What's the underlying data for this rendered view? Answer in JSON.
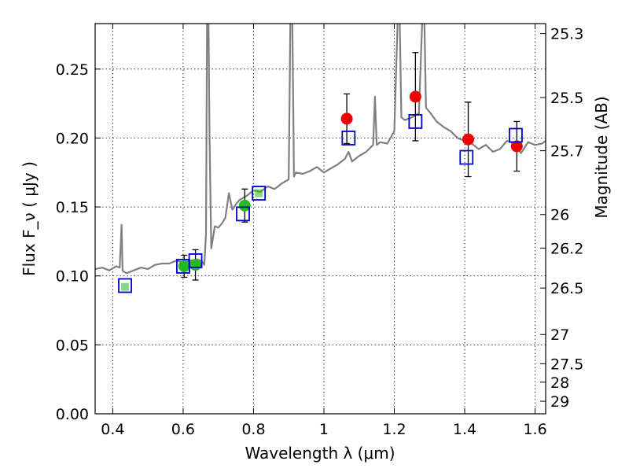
{
  "chart_data": {
    "type": "scatter",
    "xlabel": "Wavelength  λ (μm)",
    "ylabel": "Flux  F_ν  ( μJy )",
    "ylabel_right": "Magnitude (AB)",
    "xlim": [
      0.35,
      1.63
    ],
    "ylim": [
      0.0,
      0.283
    ],
    "grid": true,
    "x_ticks": [
      0.4,
      0.6,
      0.8,
      1.0,
      1.2,
      1.4,
      1.6
    ],
    "x_tick_labels": [
      "0.4",
      "0.6",
      "0.8",
      "1",
      "1.2",
      "1.4",
      "1.6"
    ],
    "y_ticks": [
      0.0,
      0.05,
      0.1,
      0.15,
      0.2,
      0.25
    ],
    "y_tick_labels": [
      "0.00",
      "0.05",
      "0.10",
      "0.15",
      "0.20",
      "0.25"
    ],
    "right_ticks": [
      {
        "label": "25.3",
        "flux": 0.2758
      },
      {
        "label": "25.5",
        "flux": 0.2294
      },
      {
        "label": "25.7",
        "flux": 0.1908
      },
      {
        "label": "26",
        "flux": 0.1445
      },
      {
        "label": "26.2",
        "flux": 0.1202
      },
      {
        "label": "26.5",
        "flux": 0.0912
      },
      {
        "label": "27",
        "flux": 0.0575
      },
      {
        "label": "27.5",
        "flux": 0.0363
      },
      {
        "label": "28",
        "flux": 0.0229
      },
      {
        "label": "29",
        "flux": 0.0091
      }
    ],
    "series": [
      {
        "kind": "spectrum",
        "color": "#808080",
        "x": [
          0.35,
          0.37,
          0.39,
          0.41,
          0.42,
          0.425,
          0.428,
          0.432,
          0.44,
          0.46,
          0.48,
          0.5,
          0.52,
          0.54,
          0.56,
          0.58,
          0.6,
          0.62,
          0.64,
          0.65,
          0.655,
          0.66,
          0.665,
          0.668,
          0.672,
          0.675,
          0.68,
          0.69,
          0.7,
          0.71,
          0.72,
          0.73,
          0.74,
          0.75,
          0.76,
          0.78,
          0.8,
          0.82,
          0.84,
          0.86,
          0.88,
          0.9,
          0.905,
          0.91,
          0.915,
          0.92,
          0.94,
          0.96,
          0.98,
          1.0,
          1.02,
          1.04,
          1.06,
          1.07,
          1.08,
          1.1,
          1.12,
          1.14,
          1.145,
          1.15,
          1.16,
          1.18,
          1.2,
          1.21,
          1.215,
          1.22,
          1.23,
          1.25,
          1.27,
          1.28,
          1.285,
          1.29,
          1.3,
          1.32,
          1.34,
          1.36,
          1.38,
          1.4,
          1.42,
          1.44,
          1.46,
          1.48,
          1.5,
          1.52,
          1.54,
          1.56,
          1.58,
          1.6,
          1.62,
          1.63
        ],
        "y": [
          0.105,
          0.106,
          0.104,
          0.107,
          0.106,
          0.137,
          0.104,
          0.103,
          0.102,
          0.104,
          0.106,
          0.105,
          0.108,
          0.109,
          0.109,
          0.111,
          0.11,
          0.111,
          0.112,
          0.111,
          0.11,
          0.108,
          0.13,
          0.29,
          0.29,
          0.2,
          0.12,
          0.136,
          0.135,
          0.138,
          0.142,
          0.16,
          0.148,
          0.152,
          0.155,
          0.158,
          0.162,
          0.161,
          0.165,
          0.163,
          0.167,
          0.17,
          0.29,
          0.29,
          0.172,
          0.175,
          0.174,
          0.176,
          0.179,
          0.175,
          0.178,
          0.181,
          0.185,
          0.19,
          0.183,
          0.187,
          0.19,
          0.195,
          0.23,
          0.195,
          0.197,
          0.196,
          0.205,
          0.29,
          0.29,
          0.215,
          0.213,
          0.215,
          0.218,
          0.29,
          0.29,
          0.222,
          0.219,
          0.212,
          0.208,
          0.205,
          0.2,
          0.198,
          0.196,
          0.192,
          0.195,
          0.19,
          0.192,
          0.198,
          0.196,
          0.189,
          0.197,
          0.195,
          0.196,
          0.198
        ]
      },
      {
        "kind": "model",
        "marker": "open-square",
        "color": "#0000cc",
        "x": [
          0.435,
          0.6,
          0.635,
          0.77,
          0.815,
          1.07,
          1.26,
          1.405,
          1.545
        ],
        "y": [
          0.093,
          0.107,
          0.111,
          0.145,
          0.16,
          0.2,
          0.212,
          0.186,
          0.202
        ]
      },
      {
        "kind": "observed-optical",
        "marker": "filled-circle",
        "color": "#22bb22",
        "x": [
          0.435,
          0.603,
          0.635,
          0.775,
          0.815
        ],
        "y": [
          0.092,
          0.107,
          0.108,
          0.151,
          0.16
        ],
        "err": [
          0,
          0.008,
          0.011,
          0.012,
          0
        ],
        "small_marker": [
          true,
          false,
          false,
          false,
          true
        ]
      },
      {
        "kind": "observed-nir",
        "marker": "filled-circle",
        "color": "#ee0000",
        "x": [
          1.065,
          1.26,
          1.41,
          1.548
        ],
        "y": [
          0.214,
          0.23,
          0.199,
          0.194
        ],
        "err": [
          0.018,
          0.032,
          0.027,
          0.018
        ]
      }
    ]
  }
}
